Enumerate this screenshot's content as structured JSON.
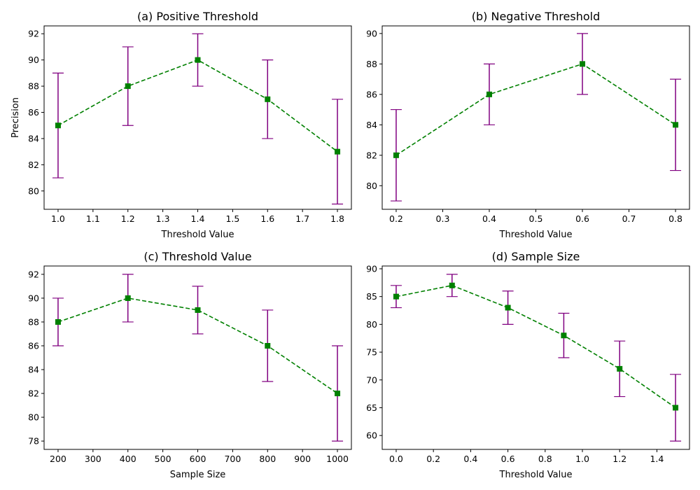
{
  "chart_data": [
    {
      "type": "line",
      "title": "(a) Positive Threshold",
      "xlabel": "Threshold Value",
      "ylabel": "Precision",
      "x": [
        1.0,
        1.2,
        1.4,
        1.6,
        1.8
      ],
      "y": [
        85,
        88,
        90,
        87,
        83
      ],
      "err_low": [
        81,
        85,
        88,
        84,
        79
      ],
      "err_high": [
        89,
        91,
        92,
        90,
        87
      ],
      "xlim": [
        0.96,
        1.84
      ],
      "ylim": [
        78.6,
        92.6
      ],
      "xticks": [
        1.0,
        1.1,
        1.2,
        1.3,
        1.4,
        1.5,
        1.6,
        1.7,
        1.8
      ],
      "xtick_labels": [
        "1.0",
        "1.1",
        "1.2",
        "1.3",
        "1.4",
        "1.5",
        "1.6",
        "1.7",
        "1.8"
      ],
      "yticks": [
        80,
        82,
        84,
        86,
        88,
        90,
        92
      ],
      "ytick_labels": [
        "80",
        "82",
        "84",
        "86",
        "88",
        "90",
        "92"
      ],
      "line_color": "#008000",
      "error_color": "#800080",
      "marker": "square",
      "grid": false
    },
    {
      "type": "line",
      "title": "(b) Negative Threshold",
      "xlabel": "Threshold Value",
      "ylabel": "",
      "x": [
        0.2,
        0.4,
        0.6,
        0.8
      ],
      "y": [
        82,
        86,
        88,
        84
      ],
      "err_low": [
        79,
        84,
        86,
        81
      ],
      "err_high": [
        85,
        88,
        90,
        87
      ],
      "xlim": [
        0.17,
        0.83
      ],
      "ylim": [
        78.45,
        90.5
      ],
      "xticks": [
        0.2,
        0.3,
        0.4,
        0.5,
        0.6,
        0.7,
        0.8
      ],
      "xtick_labels": [
        "0.2",
        "0.3",
        "0.4",
        "0.5",
        "0.6",
        "0.7",
        "0.8"
      ],
      "yticks": [
        80,
        82,
        84,
        86,
        88,
        90
      ],
      "ytick_labels": [
        "80",
        "82",
        "84",
        "86",
        "88",
        "90"
      ],
      "line_color": "#008000",
      "error_color": "#800080",
      "marker": "square",
      "grid": false
    },
    {
      "type": "line",
      "title": "(c) Threshold Value",
      "xlabel": "Sample Size",
      "ylabel": "",
      "x": [
        200,
        400,
        600,
        800,
        1000
      ],
      "y": [
        88,
        90,
        89,
        86,
        82
      ],
      "err_low": [
        86,
        88,
        87,
        83,
        78
      ],
      "err_high": [
        90,
        92,
        91,
        89,
        86
      ],
      "xlim": [
        160,
        1040
      ],
      "ylim": [
        77.3,
        92.7
      ],
      "xticks": [
        200,
        300,
        400,
        500,
        600,
        700,
        800,
        900,
        1000
      ],
      "xtick_labels": [
        "200",
        "300",
        "400",
        "500",
        "600",
        "700",
        "800",
        "900",
        "1000"
      ],
      "yticks": [
        78,
        80,
        82,
        84,
        86,
        88,
        90,
        92
      ],
      "ytick_labels": [
        "78",
        "80",
        "82",
        "84",
        "86",
        "88",
        "90",
        "92"
      ],
      "line_color": "#008000",
      "error_color": "#800080",
      "marker": "square",
      "grid": false
    },
    {
      "type": "line",
      "title": "(d) Sample Size",
      "xlabel": "Threshold Value",
      "ylabel": "",
      "x": [
        0.0,
        0.3,
        0.6,
        0.9,
        1.2,
        1.5
      ],
      "y": [
        85,
        87,
        83,
        78,
        72,
        65
      ],
      "err_low": [
        83,
        85,
        80,
        74,
        67,
        59
      ],
      "err_high": [
        87,
        89,
        86,
        82,
        77,
        71
      ],
      "xlim": [
        -0.075,
        1.575
      ],
      "ylim": [
        57.5,
        90.5
      ],
      "xticks": [
        0.0,
        0.2,
        0.4,
        0.6,
        0.8,
        1.0,
        1.2,
        1.4
      ],
      "xtick_labels": [
        "0.0",
        "0.2",
        "0.4",
        "0.6",
        "0.8",
        "1.0",
        "1.2",
        "1.4"
      ],
      "yticks": [
        60,
        65,
        70,
        75,
        80,
        85,
        90
      ],
      "ytick_labels": [
        "60",
        "65",
        "70",
        "75",
        "80",
        "85",
        "90"
      ],
      "line_color": "#008000",
      "error_color": "#800080",
      "marker": "square",
      "grid": false
    }
  ]
}
